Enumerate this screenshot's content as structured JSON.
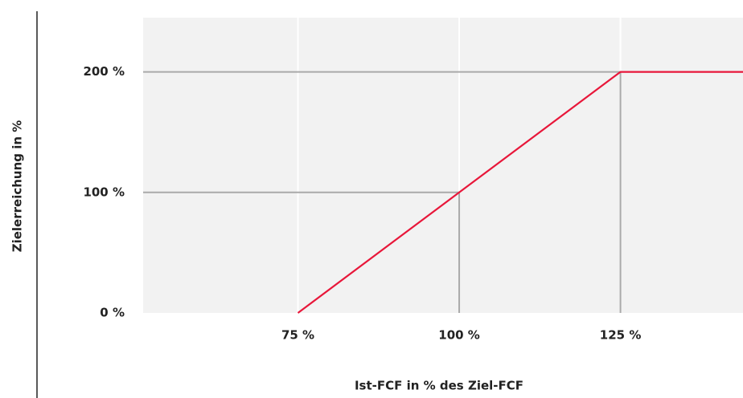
{
  "chart_data": {
    "type": "line",
    "x_label": "Ist-FCF in % des Ziel-FCF",
    "y_label": "Zielerreichung in %",
    "x": [
      75,
      100,
      125,
      144
    ],
    "series": [
      {
        "color": "#e8173a",
        "values": [
          0,
          100,
          200,
          200
        ]
      }
    ],
    "xlim": [
      51,
      144
    ],
    "ylim": [
      0,
      245
    ],
    "xticks": [
      {
        "value": 75,
        "label": "75 %"
      },
      {
        "value": 100,
        "label": "100 %"
      },
      {
        "value": 125,
        "label": "125 %"
      }
    ],
    "yticks": [
      {
        "value": 0,
        "label": "0 %"
      },
      {
        "value": 100,
        "label": "100 %"
      },
      {
        "value": 200,
        "label": "200 %"
      }
    ],
    "grid": true
  }
}
